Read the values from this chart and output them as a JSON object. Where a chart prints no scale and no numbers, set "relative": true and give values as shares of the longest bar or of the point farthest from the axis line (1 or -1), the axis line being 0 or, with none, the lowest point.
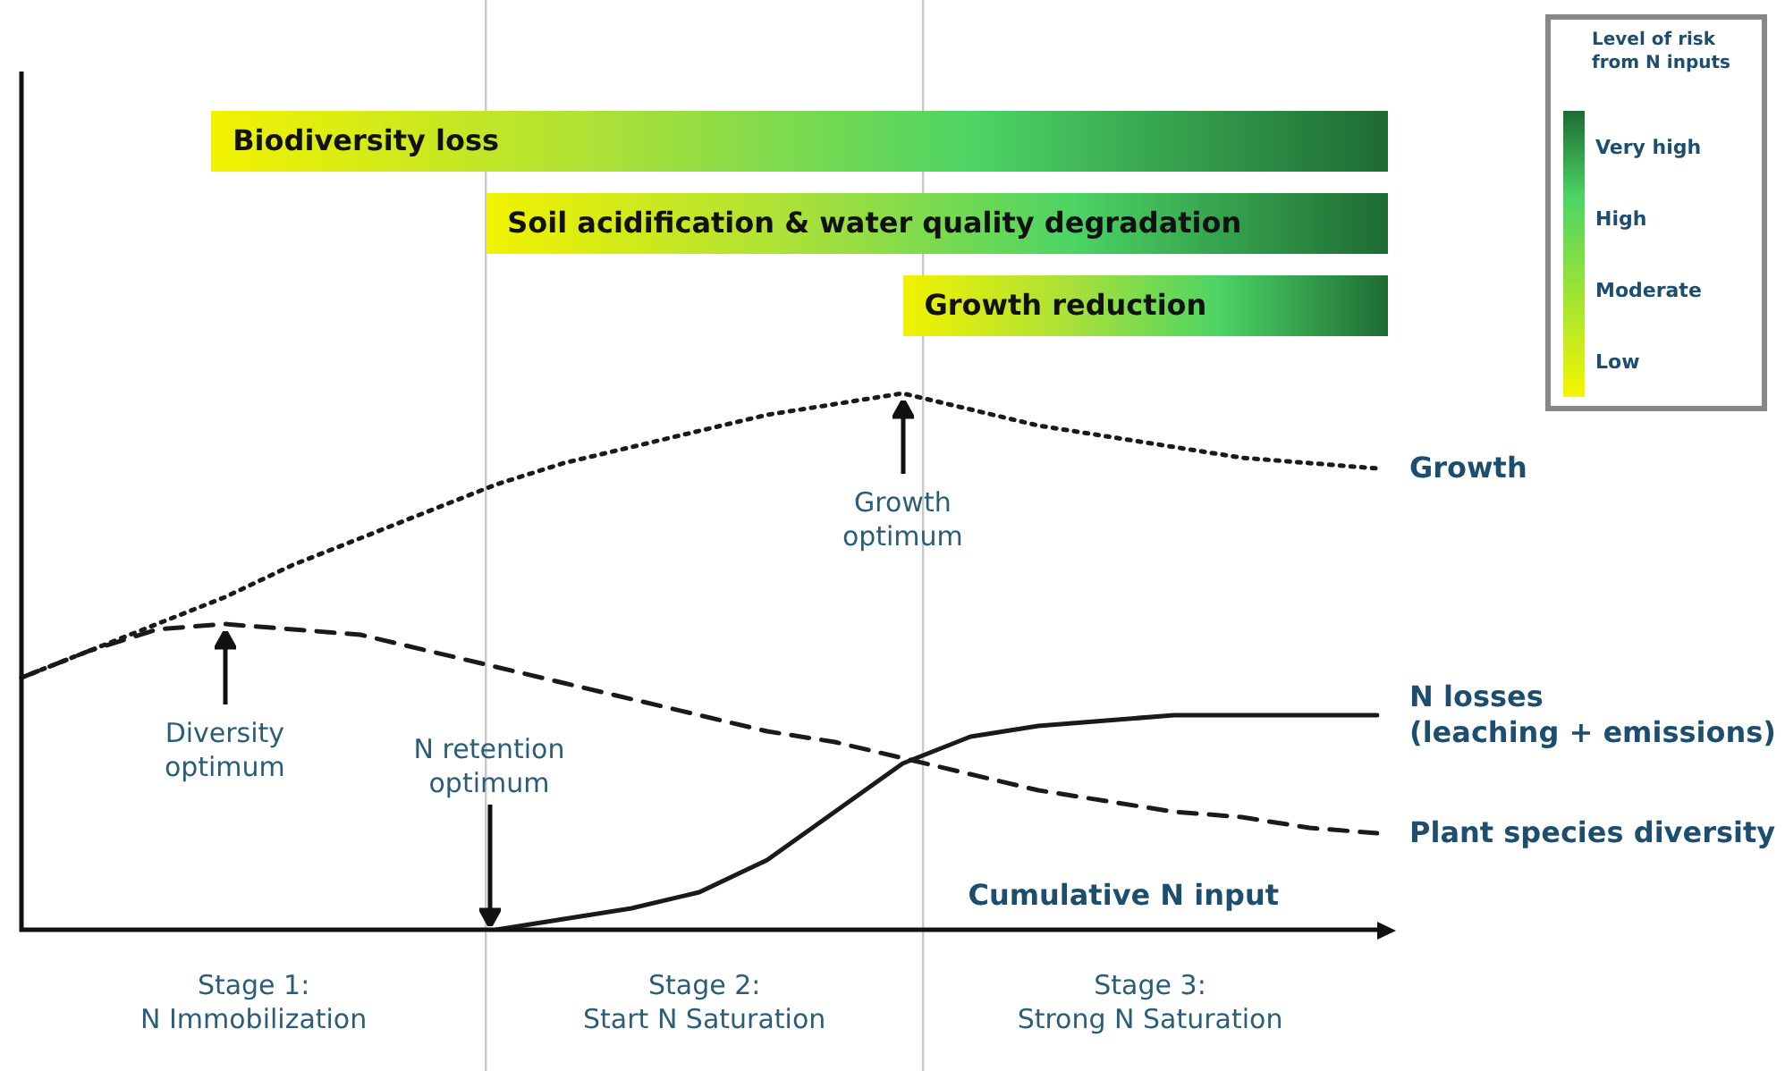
{
  "chart_data": {
    "type": "line",
    "relative": true,
    "tick_labels": false,
    "legend": false,
    "marker": "none",
    "xlabel": "Cumulative N input",
    "categories": [
      null,
      null,
      null,
      null,
      null,
      null,
      null,
      null,
      null,
      null,
      null,
      null,
      null,
      null,
      null,
      null,
      null,
      null,
      null,
      null,
      null
    ],
    "series": [
      {
        "name": "Growth",
        "color": "#1a1a1a",
        "line_style": "dotted",
        "values": [
          0.47,
          0.52,
          0.57,
          0.62,
          0.68,
          0.73,
          0.78,
          0.83,
          0.87,
          0.9,
          0.93,
          0.96,
          0.98,
          1.0,
          0.97,
          0.94,
          0.92,
          0.9,
          0.88,
          0.87,
          0.86
        ]
      },
      {
        "name": "N losses\n(leaching + emissions)",
        "color": "#1a1a1a",
        "line_style": "solid",
        "values": [
          null,
          null,
          null,
          null,
          null,
          null,
          null,
          0,
          0.02,
          0.04,
          0.07,
          0.13,
          0.22,
          0.31,
          0.36,
          0.38,
          0.39,
          0.4,
          0.4,
          0.4,
          0.4
        ]
      },
      {
        "name": "Plant species diversity",
        "color": "#1a1a1a",
        "line_style": "dashed",
        "values": [
          0.47,
          0.52,
          0.56,
          0.57,
          0.56,
          0.55,
          0.52,
          0.49,
          0.46,
          0.43,
          0.4,
          0.37,
          0.35,
          0.32,
          0.29,
          0.26,
          0.24,
          0.22,
          0.21,
          0.19,
          0.18
        ]
      }
    ],
    "annotations": [
      "Biodiversity loss",
      "Soil acidification & water quality degradation",
      "Growth reduction",
      "Stage 1:\nN Immobilization",
      "Stage 2:\nStart N Saturation",
      "Stage 3:\nStrong N Saturation",
      "Growth\noptimum",
      "Diversity\noptimum",
      "N retention\noptimum"
    ],
    "clabel": "Level of risk\nfrom N inputs",
    "clim": [
      0,
      3
    ],
    "cticks": [
      {
        "value": 0,
        "label": "Low"
      },
      {
        "value": 1,
        "label": "Moderate"
      },
      {
        "value": 2,
        "label": "High"
      },
      {
        "value": 3,
        "label": "Very high"
      }
    ]
  }
}
